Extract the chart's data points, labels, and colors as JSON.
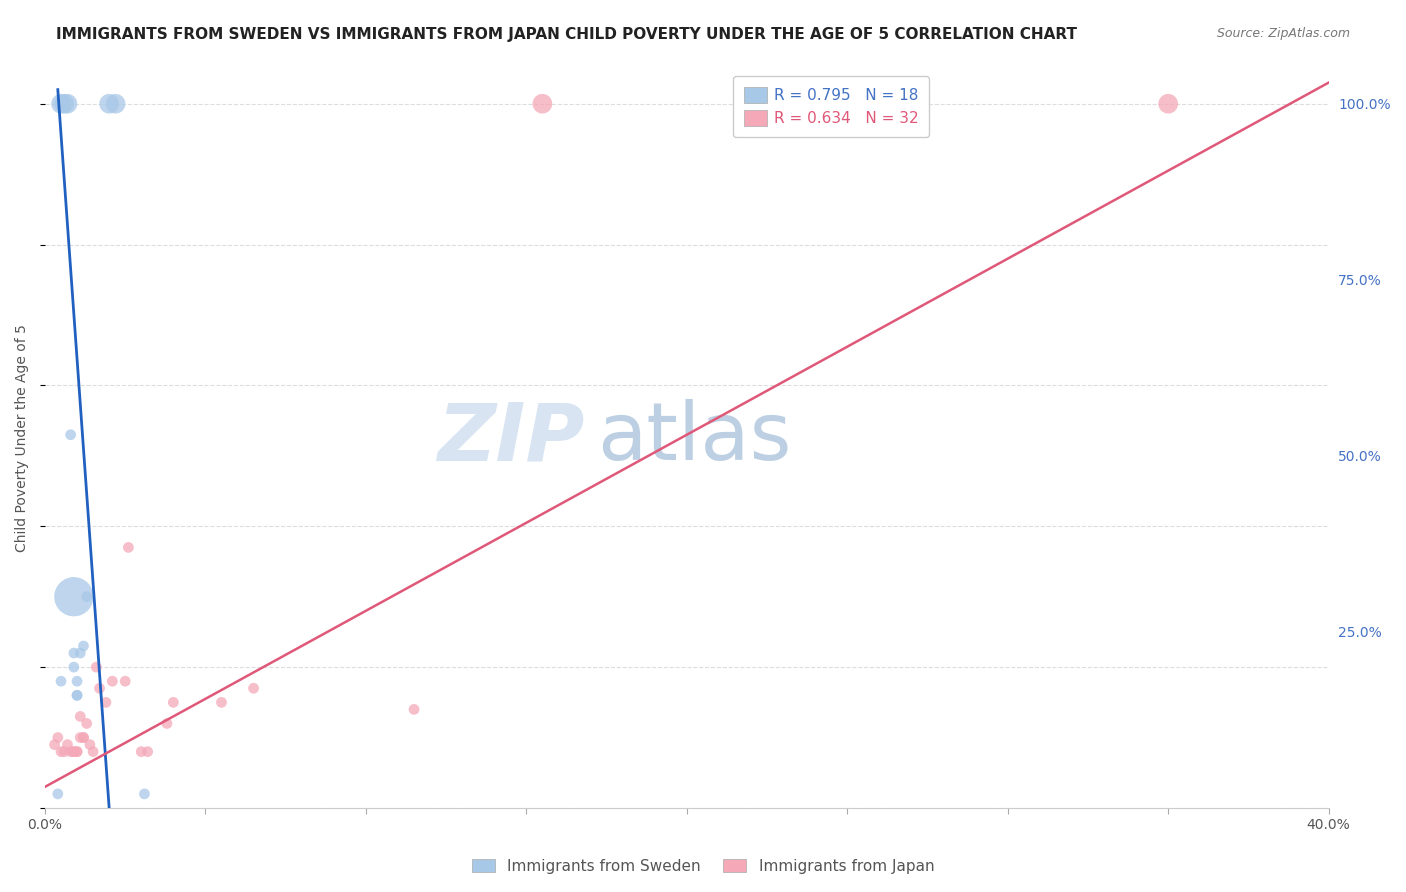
{
  "title": "IMMIGRANTS FROM SWEDEN VS IMMIGRANTS FROM JAPAN CHILD POVERTY UNDER THE AGE OF 5 CORRELATION CHART",
  "source": "Source: ZipAtlas.com",
  "ylabel": "Child Poverty Under the Age of 5",
  "xlim": [
    0.0,
    0.4
  ],
  "ylim": [
    0.0,
    1.05
  ],
  "sweden_color": "#a8c8e8",
  "japan_color": "#f4a8b8",
  "sweden_line_color": "#2060c0",
  "japan_line_color": "#e05878",
  "watermark_zip": "ZIP",
  "watermark_atlas": "atlas",
  "sweden_x": [
    0.004,
    0.005,
    0.005,
    0.006,
    0.007,
    0.008,
    0.009,
    0.009,
    0.009,
    0.01,
    0.01,
    0.01,
    0.011,
    0.012,
    0.013,
    0.02,
    0.022,
    0.031
  ],
  "sweden_y": [
    0.02,
    0.18,
    1.0,
    1.0,
    1.0,
    0.53,
    0.3,
    0.22,
    0.2,
    0.18,
    0.16,
    0.16,
    0.22,
    0.23,
    0.3,
    1.0,
    1.0,
    0.02
  ],
  "sweden_sizes": [
    60,
    60,
    200,
    200,
    200,
    60,
    800,
    60,
    60,
    60,
    60,
    60,
    60,
    60,
    60,
    200,
    200,
    60
  ],
  "japan_x": [
    0.003,
    0.004,
    0.005,
    0.006,
    0.007,
    0.008,
    0.009,
    0.009,
    0.01,
    0.01,
    0.011,
    0.011,
    0.012,
    0.012,
    0.013,
    0.014,
    0.015,
    0.016,
    0.017,
    0.019,
    0.021,
    0.025,
    0.026,
    0.03,
    0.032,
    0.038,
    0.04,
    0.055,
    0.065,
    0.115,
    0.155,
    0.35
  ],
  "japan_y": [
    0.09,
    0.1,
    0.08,
    0.08,
    0.09,
    0.08,
    0.08,
    0.08,
    0.08,
    0.08,
    0.13,
    0.1,
    0.1,
    0.1,
    0.12,
    0.09,
    0.08,
    0.2,
    0.17,
    0.15,
    0.18,
    0.18,
    0.37,
    0.08,
    0.08,
    0.12,
    0.15,
    0.15,
    0.17,
    0.14,
    1.0,
    1.0
  ],
  "japan_sizes": [
    60,
    60,
    60,
    60,
    60,
    60,
    60,
    60,
    60,
    60,
    60,
    60,
    60,
    60,
    60,
    60,
    60,
    60,
    60,
    60,
    60,
    60,
    60,
    60,
    60,
    60,
    60,
    60,
    60,
    60,
    200,
    200
  ],
  "sweden_trendline_x": [
    0.004,
    0.02
  ],
  "sweden_trendline_y": [
    1.02,
    0.0
  ],
  "japan_trendline_x": [
    0.0,
    0.4
  ],
  "japan_trendline_y": [
    0.03,
    1.03
  ],
  "title_fontsize": 11,
  "source_fontsize": 9,
  "axis_label_fontsize": 10,
  "tick_fontsize": 10,
  "legend_fontsize": 11,
  "background_color": "#ffffff",
  "grid_color": "#dddddd",
  "right_tick_color": "#4472c4",
  "bottom_legend_labels": [
    "Immigrants from Sweden",
    "Immigrants from Japan"
  ],
  "legend_r_sweden": "R = 0.795",
  "legend_n_sweden": "N = 18",
  "legend_r_japan": "R = 0.634",
  "legend_n_japan": "N = 32"
}
